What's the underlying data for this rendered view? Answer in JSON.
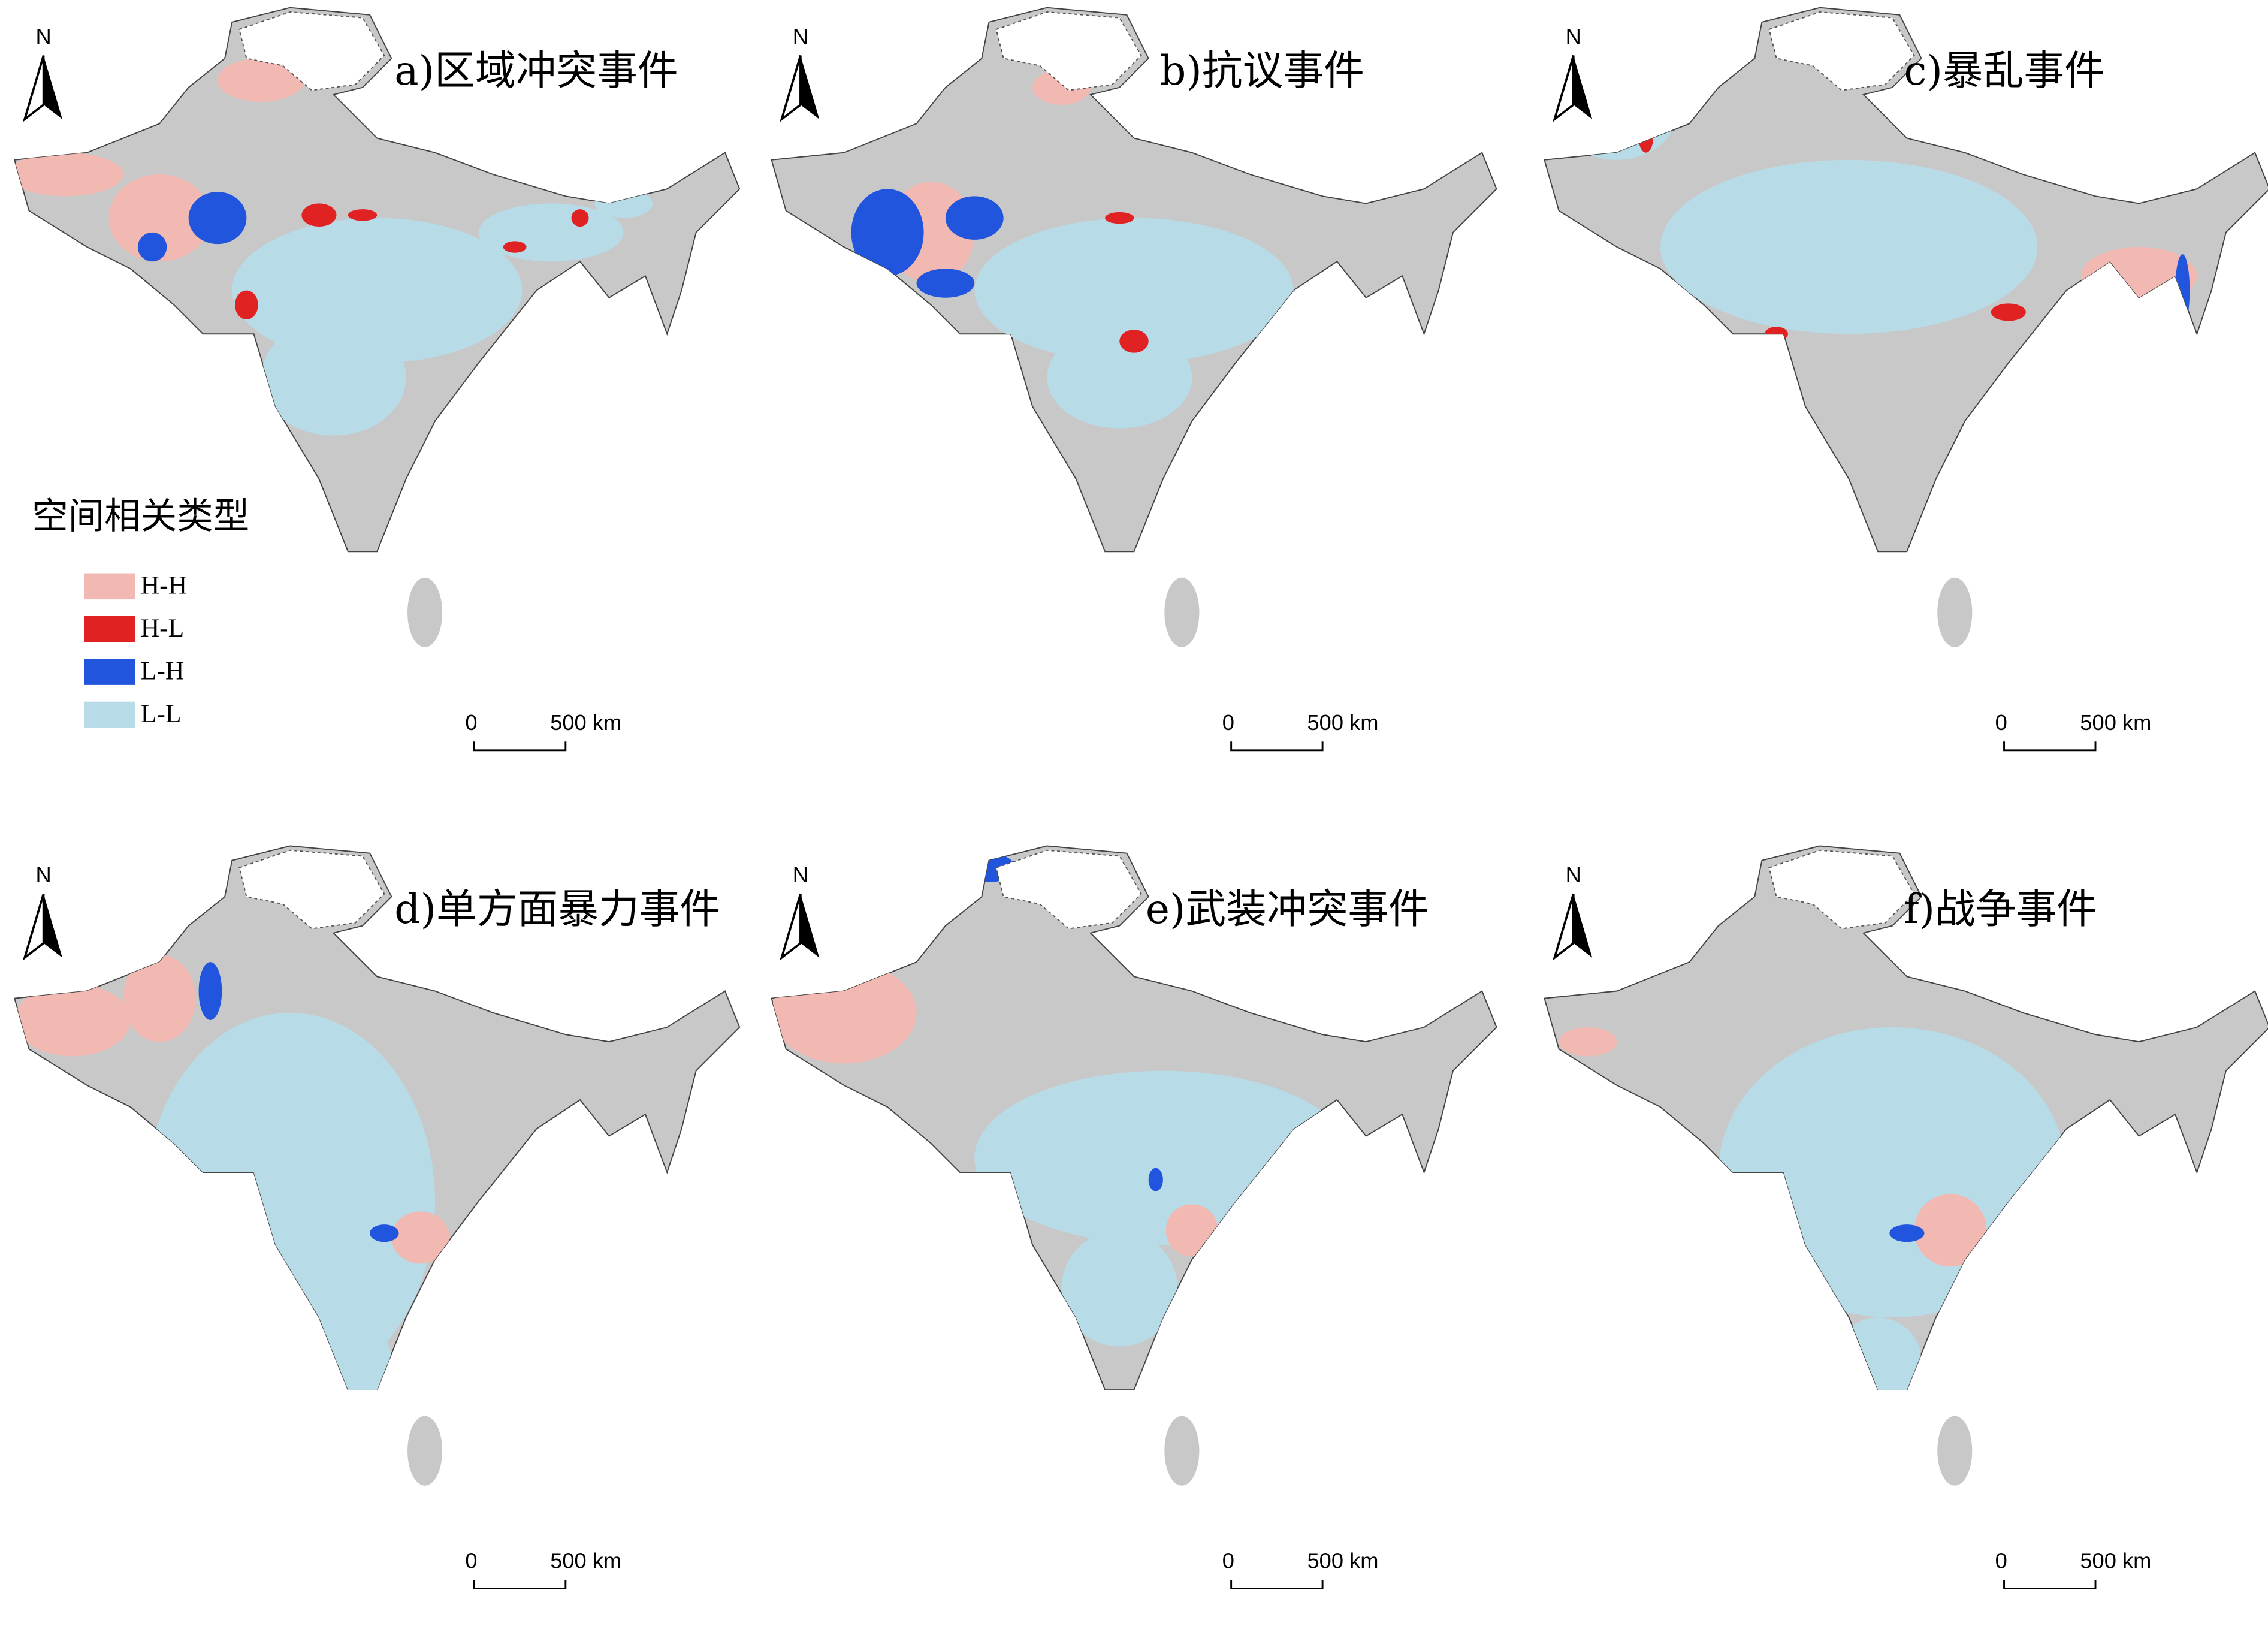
{
  "legend": {
    "title": "空间相关类型",
    "items": [
      {
        "label": "H-H",
        "color": "#f2b8b2"
      },
      {
        "label": "H-L",
        "color": "#e02222"
      },
      {
        "label": "L-H",
        "color": "#2255dd"
      },
      {
        "label": "L-L",
        "color": "#b8dbe8"
      }
    ]
  },
  "panels": [
    {
      "title": "a)区域冲突事件",
      "north": "N",
      "scale": [
        "0",
        "500 km"
      ]
    },
    {
      "title": "b)抗议事件",
      "north": "N",
      "scale": [
        "0",
        "500 km"
      ]
    },
    {
      "title": "c)暴乱事件",
      "north": "N",
      "scale": [
        "0",
        "500 km"
      ]
    },
    {
      "title": "d)单方面暴力事件",
      "north": "N",
      "scale": [
        "0",
        "500 km"
      ]
    },
    {
      "title": "e)武装冲突事件",
      "north": "N",
      "scale": [
        "0",
        "500 km"
      ]
    },
    {
      "title": "f)战争事件",
      "north": "N",
      "scale": [
        "0",
        "500 km"
      ]
    }
  ]
}
